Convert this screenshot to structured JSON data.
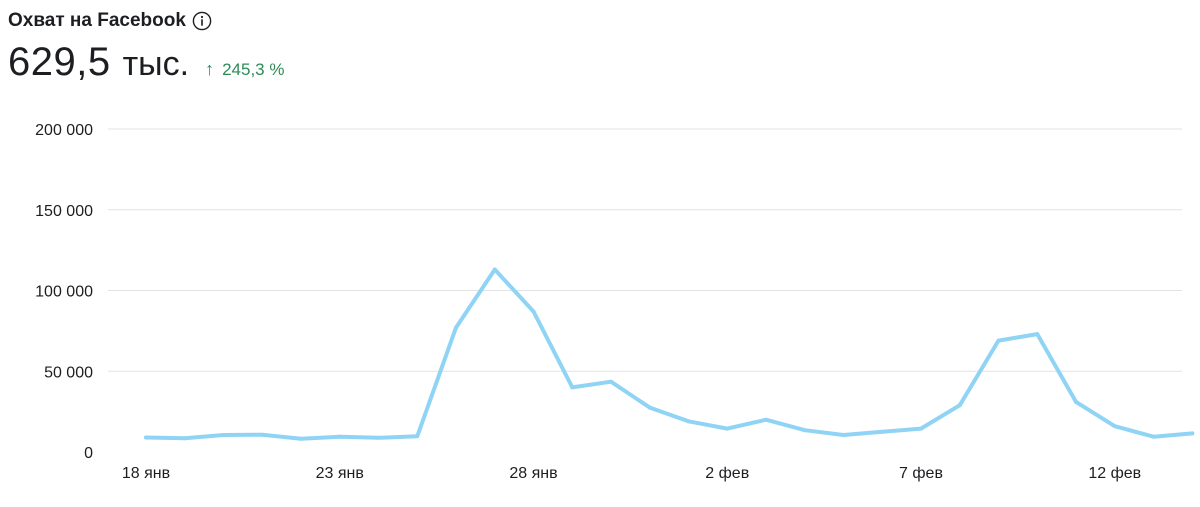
{
  "header": {
    "title": "Охват на Facebook",
    "value": "629,5",
    "unit": "тыс.",
    "delta_arrow": "↑",
    "delta_value": "245,3 %"
  },
  "colors": {
    "line": "#8fd4f4",
    "grid": "#e3e3e3",
    "delta": "#2e8b57"
  },
  "icons": {
    "info": "info-icon",
    "delta": "arrow-up-icon"
  },
  "chart_data": {
    "type": "line",
    "title": "",
    "xlabel": "",
    "ylabel": "",
    "ylim": [
      0,
      200000
    ],
    "yticks": [
      0,
      50000,
      100000,
      150000,
      200000
    ],
    "ytick_labels": [
      "0",
      "50 000",
      "100 000",
      "150 000",
      "200 000"
    ],
    "x": [
      "18 янв",
      "19 янв",
      "20 янв",
      "21 янв",
      "22 янв",
      "23 янв",
      "24 янв",
      "25 янв",
      "26 янв",
      "27 янв",
      "28 янв",
      "29 янв",
      "30 янв",
      "31 янв",
      "1 фев",
      "2 фев",
      "3 фев",
      "4 фев",
      "5 фев",
      "6 фев",
      "7 фев",
      "8 фев",
      "9 фев",
      "10 фев",
      "11 фев",
      "12 фев",
      "13 фев",
      "14 фев"
    ],
    "xtick_labels": [
      "18 янв",
      "23 янв",
      "28 янв",
      "2 фев",
      "7 фев",
      "12 фев"
    ],
    "grid": true,
    "series": [
      {
        "values": [
          9000,
          8500,
          10500,
          10700,
          8200,
          9500,
          8800,
          9800,
          77000,
          113000,
          87000,
          40000,
          43500,
          27500,
          19000,
          14500,
          20000,
          13500,
          10500,
          12500,
          14500,
          29000,
          69000,
          73000,
          31000,
          16000,
          9500,
          11500
        ]
      }
    ]
  }
}
